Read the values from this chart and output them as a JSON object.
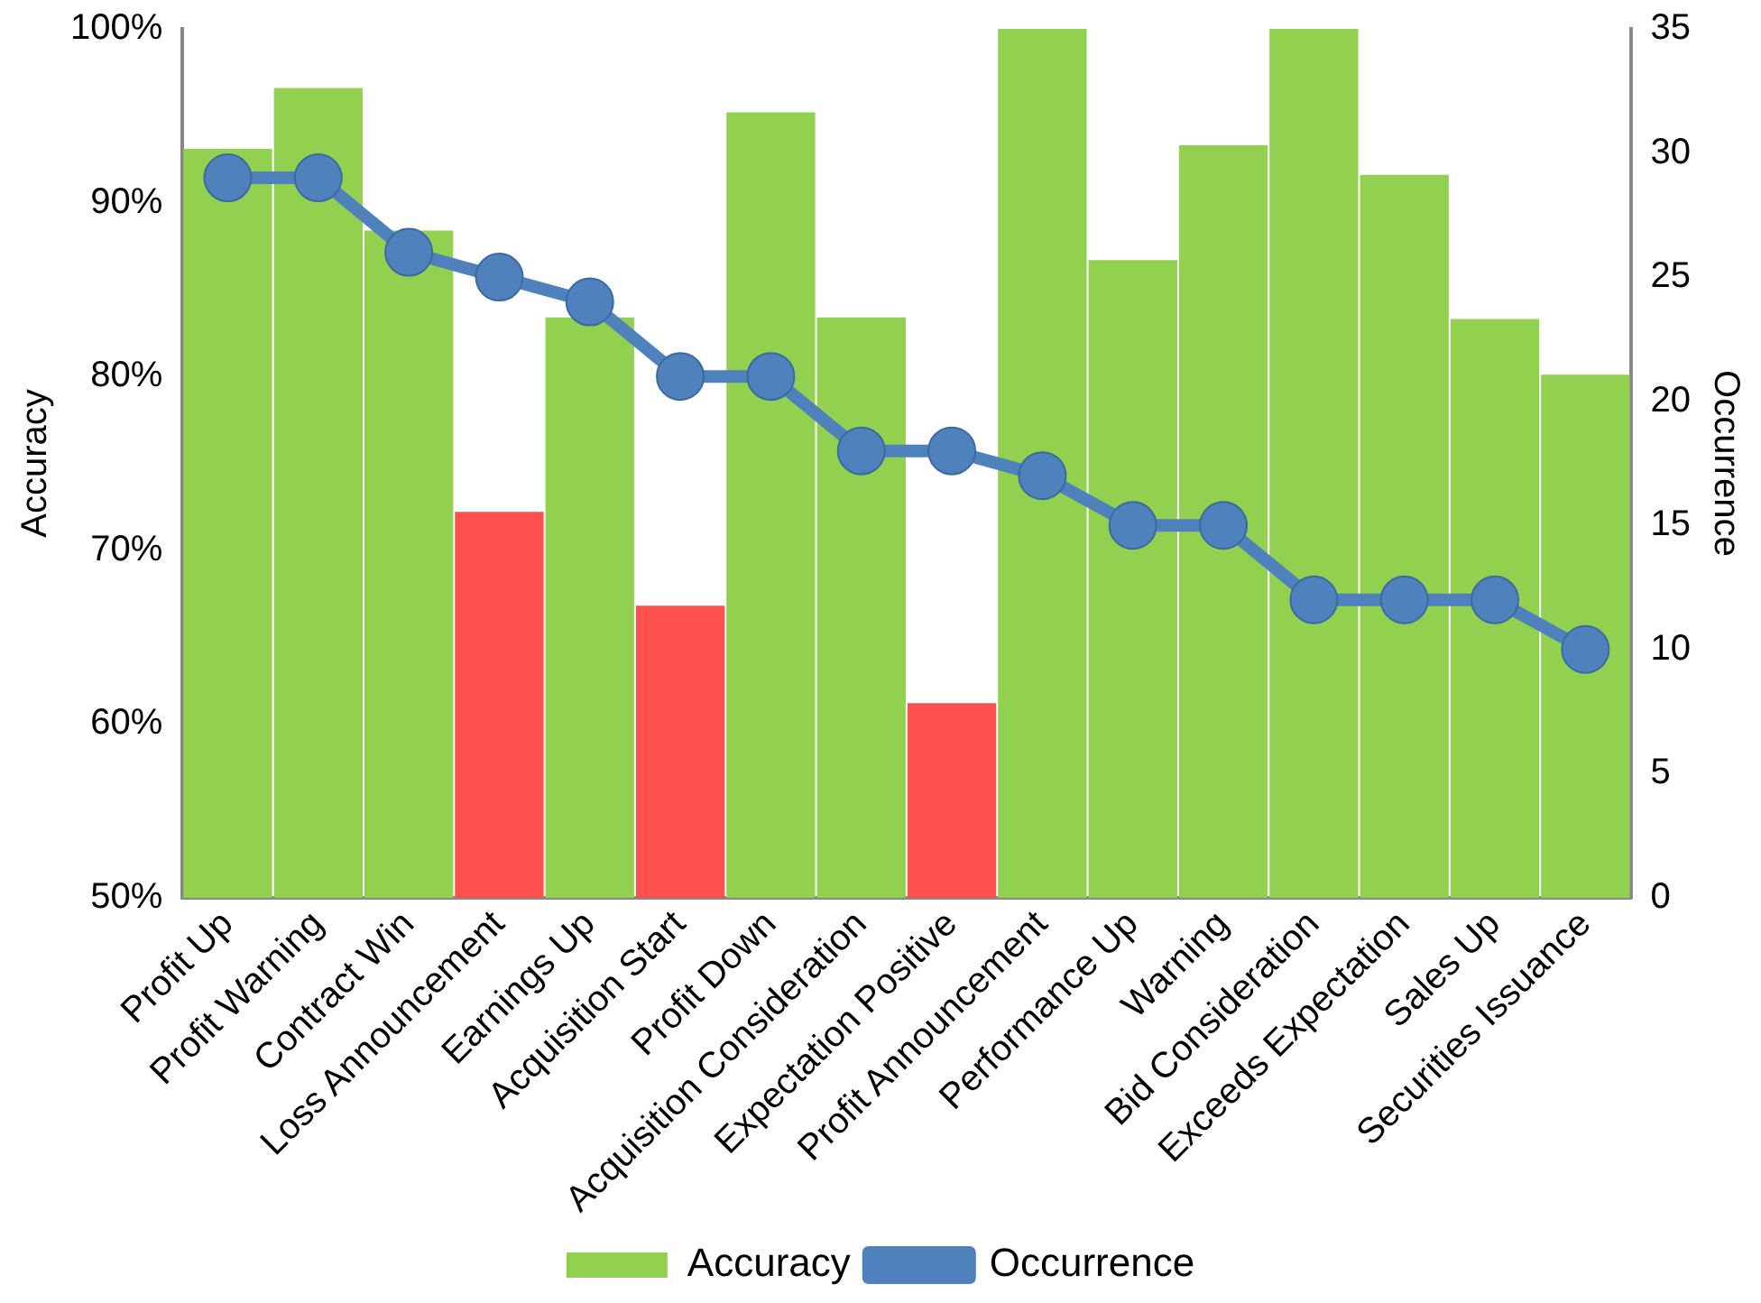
{
  "chart_data": {
    "type": "bar",
    "ylabel": "Accuracy",
    "y2label": "Occurrence",
    "categories": [
      "Profit Up",
      "Profit Warning",
      "Contract Win",
      "Loss Announcement",
      "Earnings Up",
      "Acquisition Start",
      "Profit Down",
      "Acquisition Consideration",
      "Expectation Positive",
      "Profit Announcement",
      "Performance Up",
      "Warning",
      "Bid Consideration",
      "Exceeds Expectation",
      "Sales Up",
      "Securities Issuance"
    ],
    "series": [
      {
        "name": "Accuracy",
        "color": "#92d050",
        "colors": [
          "#92d050",
          "#92d050",
          "#92d050",
          "#ff5050",
          "#92d050",
          "#ff5050",
          "#92d050",
          "#92d050",
          "#ff5050",
          "#92d050",
          "#92d050",
          "#92d050",
          "#92d050",
          "#92d050",
          "#92d050",
          "#92d050"
        ],
        "values": [
          93.1,
          96.6,
          88.4,
          72.2,
          83.4,
          66.8,
          95.2,
          83.4,
          61.2,
          100,
          86.7,
          93.3,
          100,
          91.6,
          83.3,
          80.1
        ]
      },
      {
        "name": "Occurrence",
        "type": "line",
        "axis": "y2",
        "color": "#4f81bd",
        "values": [
          29,
          29,
          26,
          25,
          24,
          21,
          21,
          18,
          18,
          17,
          15,
          15,
          12,
          12,
          12,
          10
        ]
      }
    ],
    "ylim": [
      50,
      100
    ],
    "yticks": [
      {
        "value": 50,
        "label": "50%"
      },
      {
        "value": 60,
        "label": "60%"
      },
      {
        "value": 70,
        "label": "70%"
      },
      {
        "value": 80,
        "label": "80%"
      },
      {
        "value": 90,
        "label": "90%"
      },
      {
        "value": 100,
        "label": "100%"
      }
    ],
    "y2lim": [
      0,
      35
    ],
    "y2ticks": [
      0,
      5,
      10,
      15,
      20,
      25,
      30,
      35
    ],
    "grid": false,
    "legend": "bottom",
    "marker": "circle",
    "line_style": "solid"
  }
}
